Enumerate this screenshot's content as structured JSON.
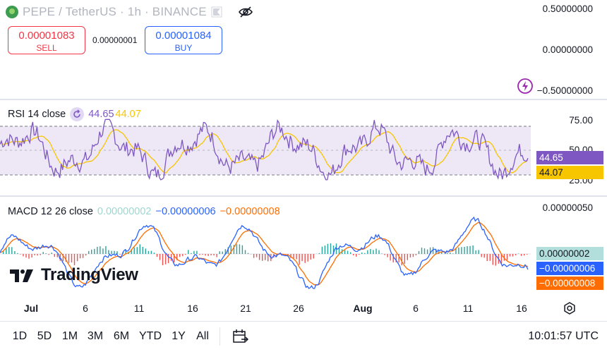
{
  "header": {
    "title": "PEPE / TetherUS · 1h · BINANCE",
    "sell": {
      "price": "0.00001083",
      "label": "SELL"
    },
    "spread": "0.00000001",
    "buy": {
      "price": "0.00001084",
      "label": "BUY"
    }
  },
  "main_axis": [
    "0.50000000",
    "0.00000000",
    "−0.50000000"
  ],
  "rsi": {
    "label": "RSI 14 close",
    "value": "44.65",
    "ma_value": "44.07",
    "axis": [
      "75.00",
      "50.00",
      "25.00"
    ],
    "tag_rsi": "44.65",
    "tag_ma": "44.07",
    "colors": {
      "rsi": "#7e57c2",
      "ma": "#f7c600",
      "band": "#ede7f6"
    }
  },
  "macd": {
    "label": "MACD 12 26 close",
    "hist": "0.00000002",
    "macd": "−0.00000006",
    "signal": "−0.00000008",
    "axis_top": "0.00000050",
    "tag_hist": "0.00000002",
    "tag_macd": "−0.00000006",
    "tag_signal": "−0.00000008",
    "colors": {
      "macd": "#2962ff",
      "signal": "#ff6d00",
      "hist_pos": "#26a69a",
      "hist_neg": "#ef5350"
    }
  },
  "logo": {
    "text": "TradingView"
  },
  "time_axis": [
    {
      "label": "Jul",
      "bold": true
    },
    {
      "label": "6",
      "bold": false
    },
    {
      "label": "11",
      "bold": false
    },
    {
      "label": "16",
      "bold": false
    },
    {
      "label": "21",
      "bold": false
    },
    {
      "label": "26",
      "bold": false
    },
    {
      "label": "Aug",
      "bold": true
    },
    {
      "label": "6",
      "bold": false
    },
    {
      "label": "11",
      "bold": false
    },
    {
      "label": "16",
      "bold": false
    }
  ],
  "ranges": [
    "1D",
    "5D",
    "1M",
    "3M",
    "6M",
    "YTD",
    "1Y",
    "All"
  ],
  "clock": "10:01:57 UTC"
}
